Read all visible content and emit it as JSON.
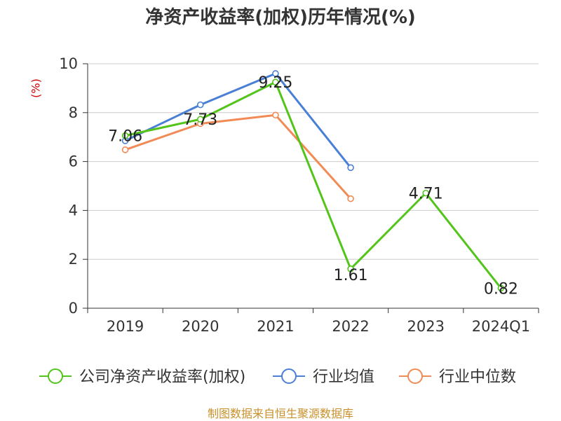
{
  "chart_data": {
    "type": "line",
    "title": "净资产收益率(加权)历年情况(%)",
    "ylabel": "(%)",
    "xlabel": "",
    "ylim": [
      0,
      10
    ],
    "yticks": [
      0,
      2,
      4,
      6,
      8,
      10
    ],
    "grid": true,
    "legend_position": "bottom",
    "categories": [
      "2019",
      "2020",
      "2021",
      "2022",
      "2023",
      "2024Q1"
    ],
    "series": [
      {
        "name": "公司净资产收益率(加权)",
        "color": "#52c41a",
        "values": [
          7.06,
          7.73,
          9.25,
          1.61,
          4.71,
          0.82
        ],
        "labels": [
          "7.06",
          "7.73",
          "9.25",
          "1.61",
          "4.71",
          "0.82"
        ]
      },
      {
        "name": "行业均值",
        "color": "#4a7fd6",
        "values": [
          6.85,
          8.32,
          9.6,
          5.75,
          null,
          null
        ]
      },
      {
        "name": "行业中位数",
        "color": "#f28a55",
        "values": [
          6.48,
          7.55,
          7.9,
          4.48,
          null,
          null
        ]
      }
    ]
  },
  "footer": "制图数据来自恒生聚源数据库"
}
